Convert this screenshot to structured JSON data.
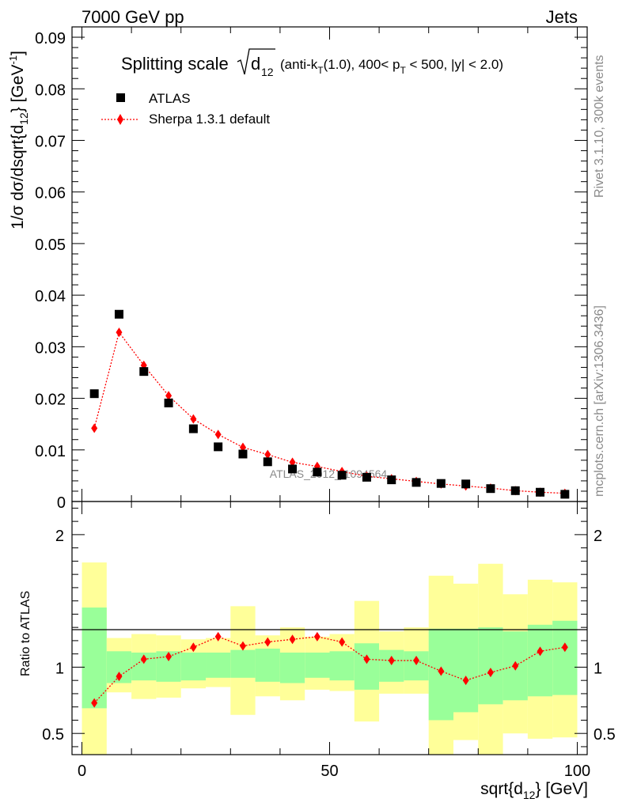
{
  "header": {
    "energy": "7000 GeV pp",
    "category": "Jets"
  },
  "side_labels": {
    "rivet": "Rivet 3.1.10,  300k events",
    "mcplots": "mcplots.cern.ch [arXiv:1306.3436]"
  },
  "watermark": "ATLAS_2012_I1094564",
  "title": {
    "prefix": "Splitting scale",
    "sym": "d",
    "sub": "12",
    "details_1": "(anti-k",
    "details_1_sub": "T",
    "details_2": "(1.0), 400< p",
    "details_2_sub": "T",
    "details_3": " < 500, |y| < 2.0)"
  },
  "legend": {
    "atlas": "ATLAS",
    "sherpa": "Sherpa 1.3.1 default"
  },
  "axes": {
    "ylabel_main": "1/σ dσ/dsqrt{d",
    "ylabel_main_sub": "12",
    "ylabel_main_end": "} [GeV",
    "ylabel_main_sup": "-1",
    "ylabel_main_close": "]",
    "ylabel_ratio": "Ratio to ATLAS",
    "xlabel": "sqrt{d",
    "xlabel_sub": "12",
    "xlabel_end": "} [GeV]"
  },
  "colors": {
    "data": "#000000",
    "mc": "#ff0000",
    "band_inner": "#99ff99",
    "band_outer": "#ffff99"
  },
  "chart_data": {
    "type": "scatter",
    "x": [
      2.5,
      7.5,
      12.5,
      17.5,
      22.5,
      27.5,
      32.5,
      37.5,
      42.5,
      47.5,
      52.5,
      57.5,
      62.5,
      67.5,
      72.5,
      77.5,
      82.5,
      87.5,
      92.5,
      97.5
    ],
    "xlim": [
      -2,
      102
    ],
    "xticks": [
      0,
      50,
      100
    ],
    "series": [
      {
        "name": "ATLAS",
        "values": [
          0.0209,
          0.0363,
          0.0252,
          0.0191,
          0.0141,
          0.0106,
          0.0092,
          0.0077,
          0.0063,
          0.0057,
          0.0051,
          0.0047,
          0.0042,
          0.0037,
          0.0035,
          0.0034,
          0.0025,
          0.0021,
          0.0018,
          0.0014
        ]
      },
      {
        "name": "Sherpa 1.3.1 default",
        "values": [
          0.0142,
          0.0328,
          0.0264,
          0.0205,
          0.016,
          0.013,
          0.0105,
          0.0091,
          0.0076,
          0.0068,
          0.0058,
          0.0049,
          0.0044,
          0.0039,
          0.0034,
          0.003,
          0.0026,
          0.0021,
          0.0018,
          0.0016
        ]
      }
    ],
    "ylim": [
      0,
      0.092
    ],
    "yticks": [
      0,
      0.01,
      0.02,
      0.03,
      0.04,
      0.05,
      0.06,
      0.07,
      0.08,
      0.09
    ],
    "ytick_labels": [
      "0",
      "0.01",
      "0.02",
      "0.03",
      "0.04",
      "0.05",
      "0.06",
      "0.07",
      "0.08",
      "0.09"
    ],
    "ratio": {
      "values": [
        0.73,
        0.93,
        1.06,
        1.08,
        1.15,
        1.23,
        1.16,
        1.19,
        1.21,
        1.23,
        1.19,
        1.06,
        1.05,
        1.05,
        0.97,
        0.9,
        0.96,
        1.01,
        1.12,
        1.15
      ],
      "band_inner_lo": [
        0.69,
        0.88,
        0.9,
        0.89,
        0.9,
        0.92,
        0.92,
        0.89,
        0.88,
        0.92,
        0.9,
        0.83,
        0.89,
        0.9,
        0.6,
        0.66,
        0.72,
        0.75,
        0.78,
        0.79
      ],
      "band_inner_hi": [
        1.45,
        1.12,
        1.11,
        1.12,
        1.11,
        1.11,
        1.13,
        1.14,
        1.11,
        1.11,
        1.12,
        1.18,
        1.13,
        1.12,
        1.29,
        1.29,
        1.3,
        1.27,
        1.32,
        1.35
      ],
      "band_outer_lo": [
        0.0,
        0.81,
        0.76,
        0.77,
        0.84,
        0.85,
        0.64,
        0.78,
        0.75,
        0.83,
        0.82,
        0.59,
        0.8,
        0.8,
        0.0,
        0.45,
        0.0,
        0.5,
        0.46,
        0.47
      ],
      "band_outer_hi": [
        1.79,
        1.22,
        1.25,
        1.24,
        1.21,
        1.22,
        1.46,
        1.24,
        1.3,
        1.23,
        1.25,
        1.5,
        1.27,
        1.3,
        1.69,
        1.63,
        1.78,
        1.55,
        1.66,
        1.64
      ],
      "ylim": [
        0.34,
        2.25
      ],
      "yticks": [
        0.5,
        1,
        2
      ],
      "ytick_labels": [
        "0.5",
        "1",
        "2"
      ]
    }
  }
}
